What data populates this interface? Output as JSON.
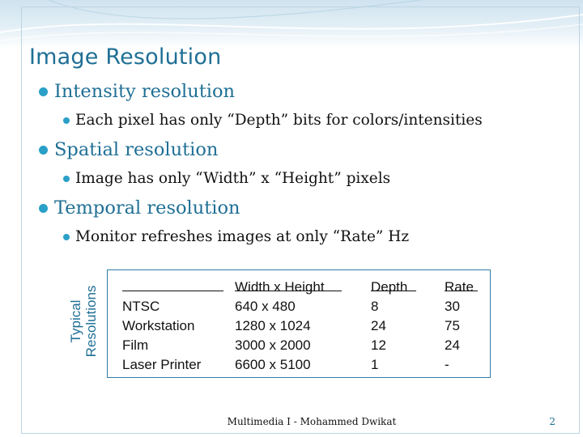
{
  "slide": {
    "title": "Image Resolution",
    "bullets": [
      {
        "text": "Intensity resolution",
        "sub": "Each pixel has only “Depth” bits for colors/intensities"
      },
      {
        "text": "Spatial resolution",
        "sub": "Image has only “Width” x “Height” pixels"
      },
      {
        "text": "Temporal resolution",
        "sub": "Monitor refreshes images at only “Rate” Hz"
      }
    ],
    "table": {
      "side_label_line1": "Typical",
      "side_label_line2": "Resolutions",
      "headers": [
        "",
        "Width x Height",
        "Depth",
        "Rate"
      ],
      "rows": [
        [
          "NTSC",
          "640 x 480",
          "8",
          "30"
        ],
        [
          "Workstation",
          "1280 x 1024",
          "24",
          "75"
        ],
        [
          "Film",
          "3000 x 2000",
          "12",
          "24"
        ],
        [
          "Laser Printer",
          "6600 x 5100",
          "1",
          "-"
        ]
      ]
    },
    "footer": "Multimedia I - Mohammed Dwikat",
    "page_number": "2",
    "colors": {
      "title": "#1f6f95",
      "bullet": "#2aa0c8",
      "band": "#cfe3ef"
    }
  }
}
